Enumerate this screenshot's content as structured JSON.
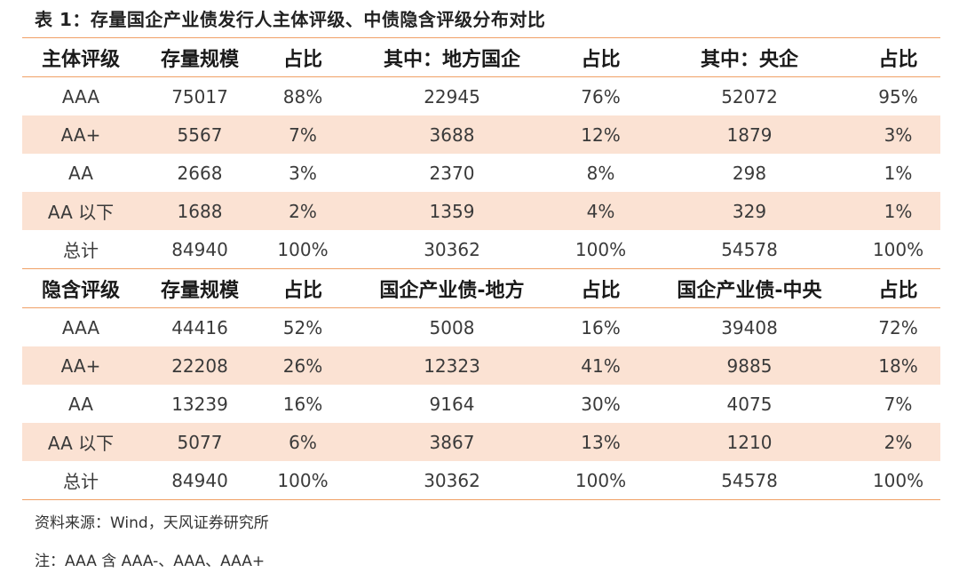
{
  "title": "表 1：存量国企产业债发行人主体评级、中债隐含评级分布对比",
  "section1": {
    "headers": [
      "主体评级",
      "存量规模",
      "占比",
      "其中：地方国企",
      "占比",
      "其中：央企",
      "占比"
    ],
    "rows": [
      [
        "AAA",
        "75017",
        "88%",
        "22945",
        "76%",
        "52072",
        "95%"
      ],
      [
        "AA+",
        "5567",
        "7%",
        "3688",
        "12%",
        "1879",
        "3%"
      ],
      [
        "AA",
        "2668",
        "3%",
        "2370",
        "8%",
        "298",
        "1%"
      ],
      [
        "AA 以下",
        "1688",
        "2%",
        "1359",
        "4%",
        "329",
        "1%"
      ],
      [
        "总计",
        "84940",
        "100%",
        "30362",
        "100%",
        "54578",
        "100%"
      ]
    ]
  },
  "section2": {
    "headers": [
      "隐含评级",
      "存量规模",
      "占比",
      "国企产业债-地方",
      "占比",
      "国企产业债-中央",
      "占比"
    ],
    "rows": [
      [
        "AAA",
        "44416",
        "52%",
        "5008",
        "16%",
        "39408",
        "72%"
      ],
      [
        "AA+",
        "22208",
        "26%",
        "12323",
        "41%",
        "9885",
        "18%"
      ],
      [
        "AA",
        "13239",
        "16%",
        "9164",
        "30%",
        "4075",
        "7%"
      ],
      [
        "AA 以下",
        "5077",
        "6%",
        "3867",
        "13%",
        "1210",
        "2%"
      ],
      [
        "总计",
        "84940",
        "100%",
        "30362",
        "100%",
        "54578",
        "100%"
      ]
    ]
  },
  "source": "资料来源：Wind，天风证券研究所",
  "note": "注：AAA 含 AAA-、AAA、AAA+",
  "colors": {
    "rule": "#f0a066",
    "stripe": "#fbe2d3"
  }
}
